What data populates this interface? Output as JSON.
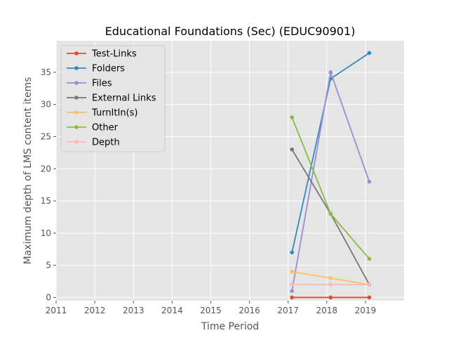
{
  "chart_data": {
    "type": "line",
    "title": "Educational Foundations (Sec) (EDUC90901)",
    "xlabel": "Time Period",
    "ylabel": "Maximum depth of LMS content items",
    "xlim": [
      2011,
      2020
    ],
    "ylim": [
      -0.5,
      39.9
    ],
    "xticks": [
      2011,
      2012,
      2013,
      2014,
      2015,
      2016,
      2017,
      2018,
      2019
    ],
    "yticks": [
      0,
      5,
      10,
      15,
      20,
      25,
      30,
      35
    ],
    "grid": true,
    "legend_position": "top-left",
    "x": [
      2017.1,
      2018.1,
      2019.1
    ],
    "series": [
      {
        "name": "Test-Links",
        "color": "#E24A33",
        "values": [
          0,
          0,
          0
        ]
      },
      {
        "name": "Folders",
        "color": "#348ABD",
        "values": [
          7,
          34,
          38
        ]
      },
      {
        "name": "Files",
        "color": "#988ED5",
        "values": [
          1,
          35,
          18
        ]
      },
      {
        "name": "External Links",
        "color": "#777777",
        "values": [
          23,
          13,
          2
        ]
      },
      {
        "name": "TurnItIn(s)",
        "color": "#FBC15E",
        "values": [
          4,
          3,
          2
        ]
      },
      {
        "name": "Other",
        "color": "#8EBA42",
        "values": [
          28,
          13,
          6
        ]
      },
      {
        "name": "Depth",
        "color": "#FFB5B8",
        "values": [
          2,
          2,
          2
        ]
      }
    ]
  }
}
